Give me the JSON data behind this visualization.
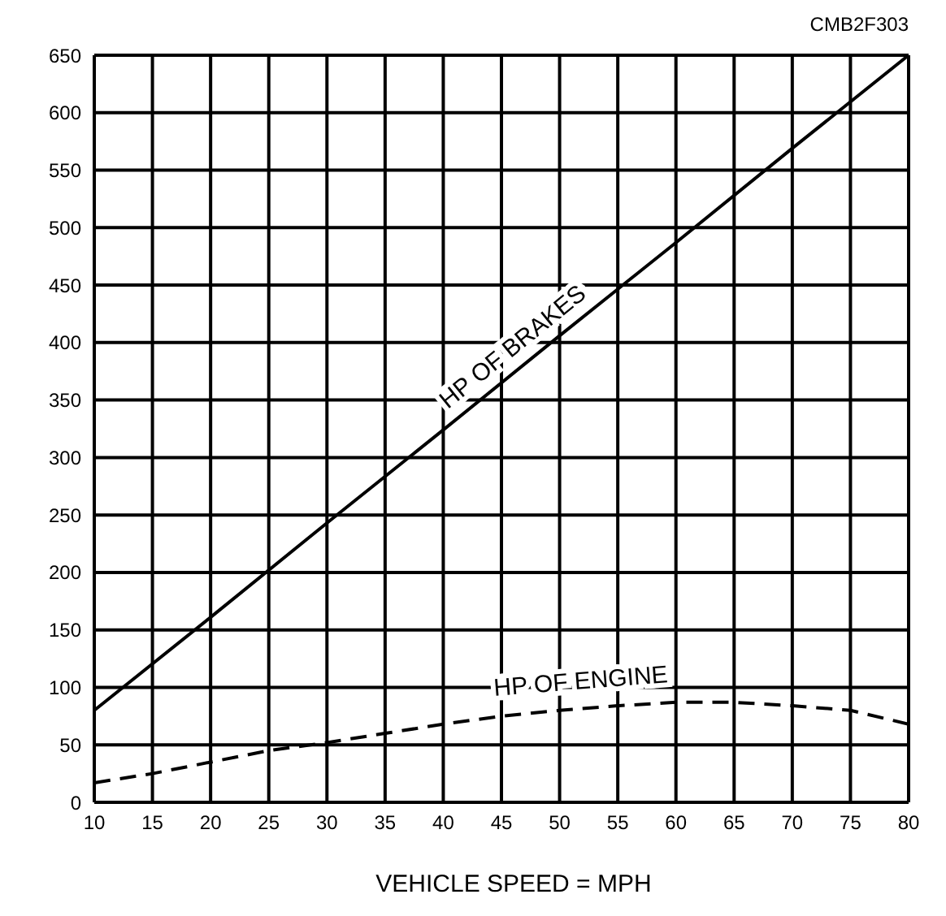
{
  "chart_data": {
    "type": "line",
    "xlabel": "VEHICLE SPEED = MPH",
    "x": [
      10,
      20,
      30,
      40,
      50,
      60,
      70,
      80
    ],
    "series": [
      {
        "name": "HP OF BRAKES",
        "color": "#000000",
        "line_style": "solid",
        "values": [
          80,
          161,
          243,
          324,
          406,
          487,
          569,
          650
        ]
      },
      {
        "name": "HP OF ENGINE",
        "color": "#000000",
        "line_style": "dashed",
        "x": [
          10,
          15,
          20,
          25,
          30,
          35,
          40,
          45,
          50,
          55,
          60,
          65,
          70,
          75,
          80
        ],
        "values": [
          17,
          25,
          35,
          45,
          52,
          60,
          68,
          75,
          80,
          84,
          87,
          87,
          84,
          80,
          68
        ]
      }
    ],
    "xlim": [
      10,
      80
    ],
    "xticks": [
      10,
      15,
      20,
      25,
      30,
      35,
      40,
      45,
      50,
      55,
      60,
      65,
      70,
      75,
      80
    ],
    "ylim": [
      0,
      650
    ],
    "yticks": [
      0,
      50,
      100,
      150,
      200,
      250,
      300,
      350,
      400,
      450,
      500,
      550,
      600,
      650
    ],
    "grid": true,
    "legend": false,
    "marker": "none",
    "annotations": [
      "CMB2F303"
    ]
  }
}
